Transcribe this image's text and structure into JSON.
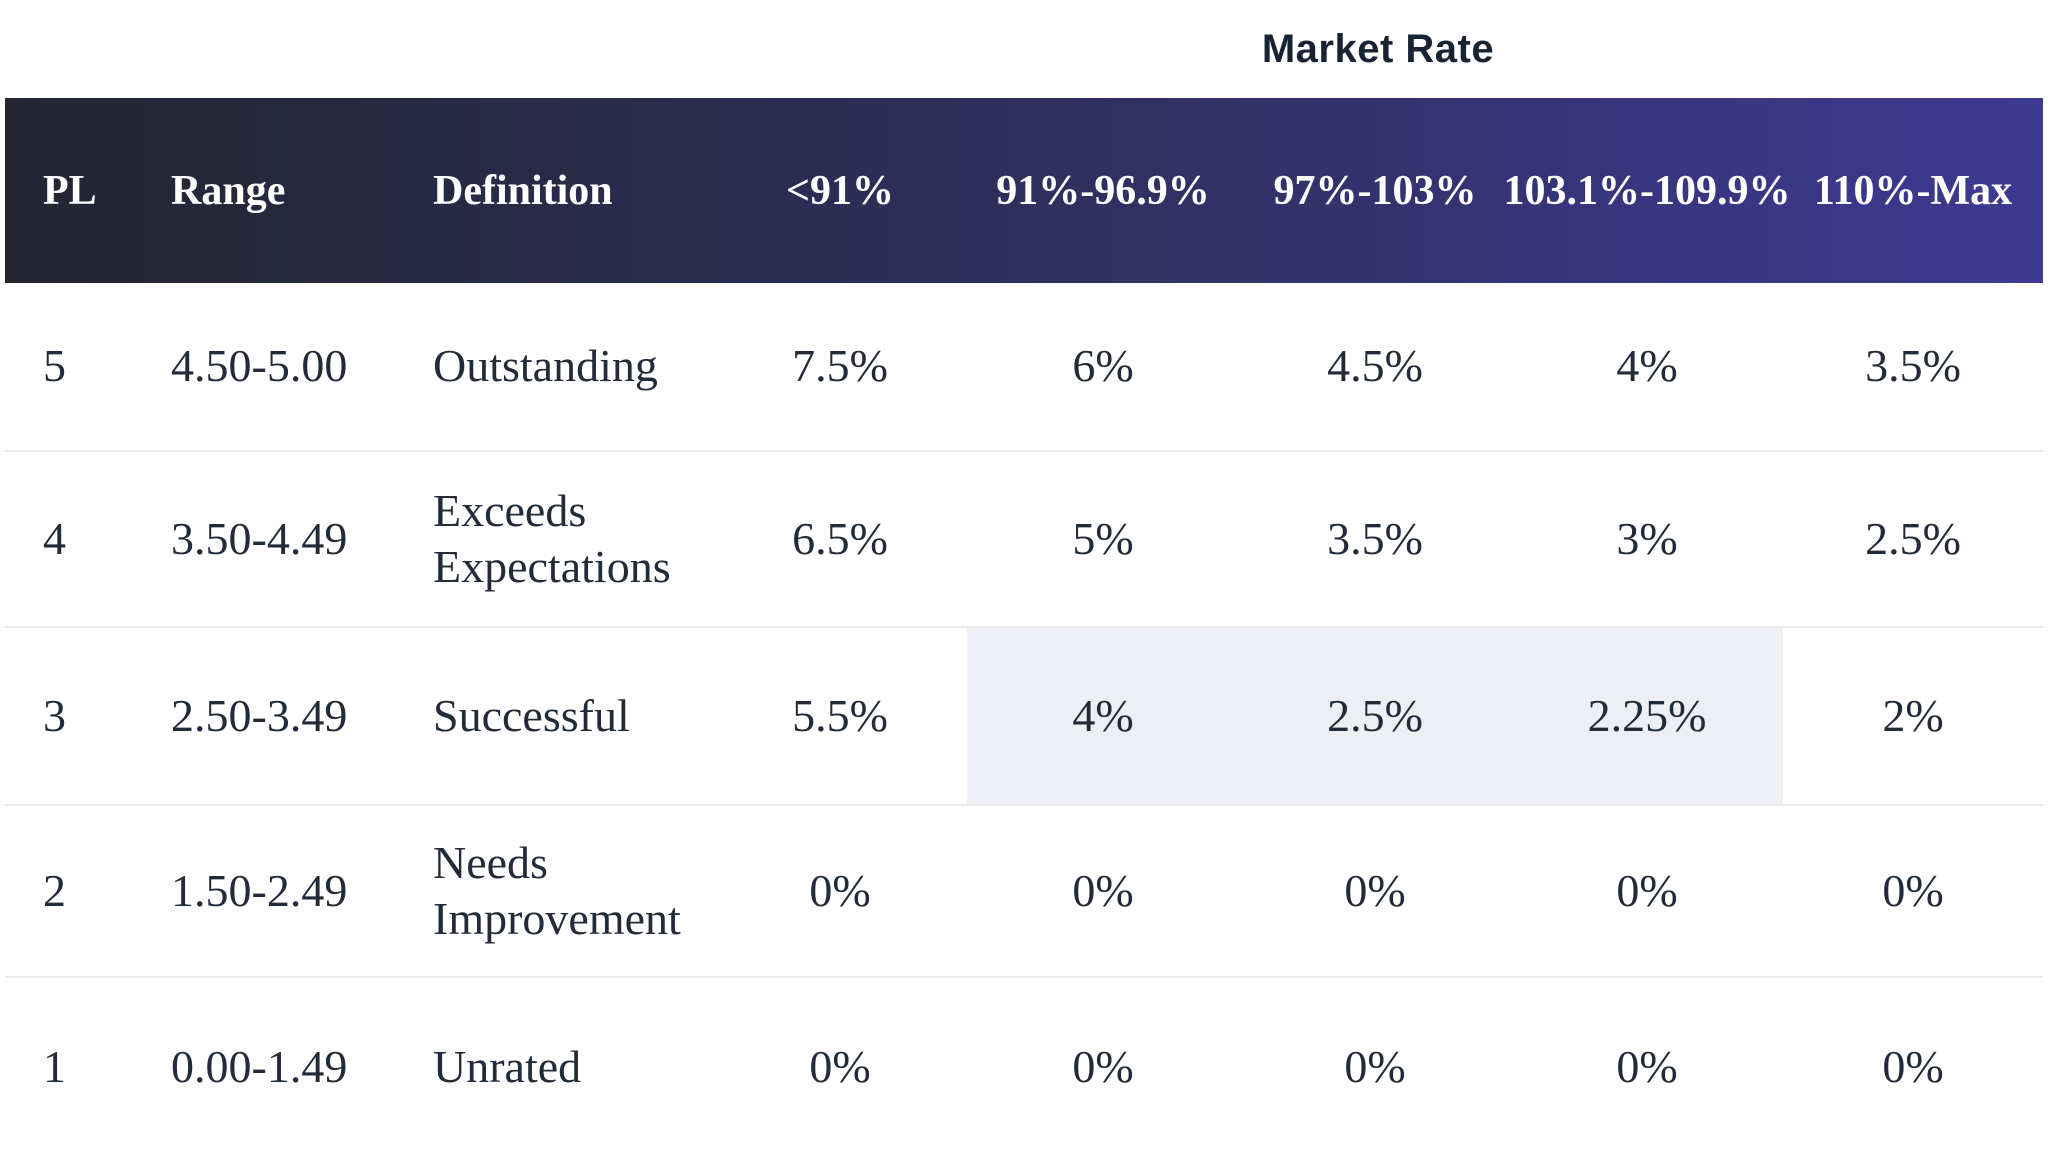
{
  "title": "Market Rate",
  "table": {
    "columns": [
      {
        "label": "PL"
      },
      {
        "label": "Range"
      },
      {
        "label": "Definition"
      },
      {
        "label": "<91%"
      },
      {
        "label": "91%-96.9%"
      },
      {
        "label": "97%-103%"
      },
      {
        "label": "103.1%-109.9%"
      },
      {
        "label": "110%-Max"
      }
    ],
    "rows": [
      {
        "pl": "5",
        "range": "4.50-5.00",
        "definition": "Outstanding",
        "values": [
          "7.5%",
          "6%",
          "4.5%",
          "4%",
          "3.5%"
        ]
      },
      {
        "pl": "4",
        "range": "3.50-4.49",
        "definition": "Exceeds Expectations",
        "values": [
          "6.5%",
          "5%",
          "3.5%",
          "3%",
          "2.5%"
        ]
      },
      {
        "pl": "3",
        "range": "2.50-3.49",
        "definition": "Successful",
        "values": [
          "5.5%",
          "4%",
          "2.5%",
          "2.25%",
          "2%"
        ]
      },
      {
        "pl": "2",
        "range": "1.50-2.49",
        "definition": "Needs Improvement",
        "values": [
          "0%",
          "0%",
          "0%",
          "0%",
          "0%"
        ]
      },
      {
        "pl": "1",
        "range": "0.00-1.49",
        "definition": "Unrated",
        "values": [
          "0%",
          "0%",
          "0%",
          "0%",
          "0%"
        ]
      }
    ],
    "highlight": {
      "row_index": 2,
      "value_col_indexes": [
        1,
        2,
        3
      ]
    }
  },
  "colors": {
    "header_gradient_left": "#232531",
    "header_gradient_mid": "#302f5e",
    "header_gradient_right": "#3d3a92",
    "header_text": "#ffffff",
    "body_text": "#222b3a",
    "title_text": "#182334",
    "row_separator": "#e9e9ed",
    "highlight_background": "#eeeef5"
  }
}
